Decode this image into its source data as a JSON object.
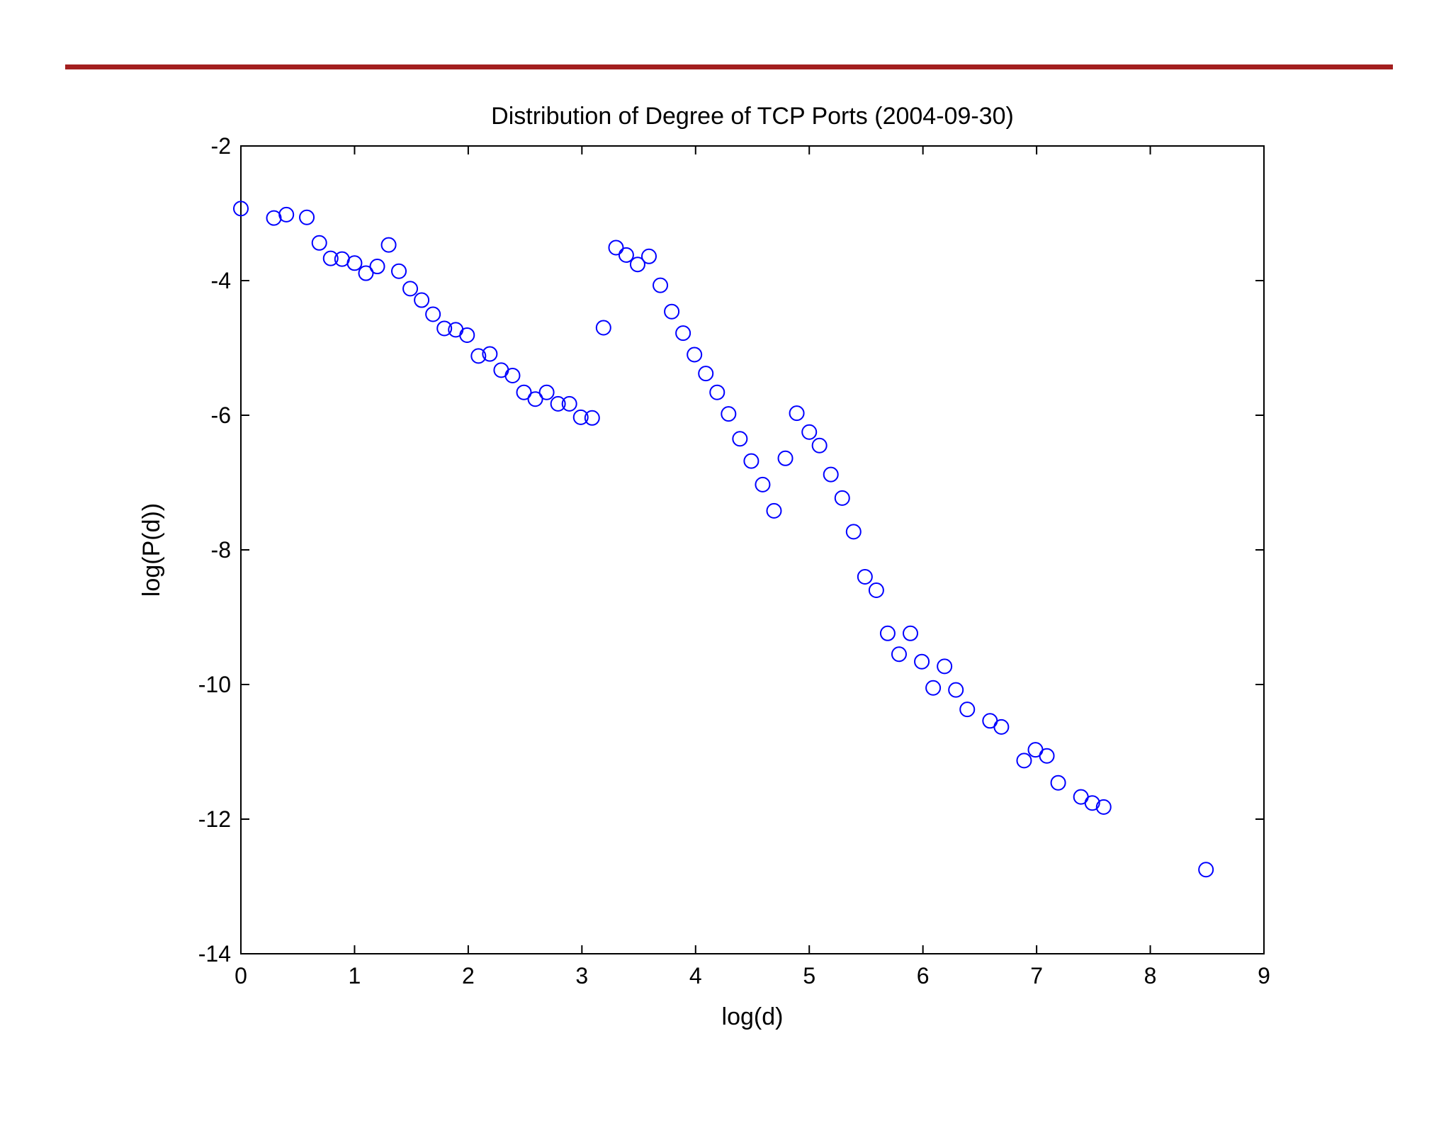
{
  "accent_color": "#a31f1f",
  "chart_data": {
    "type": "scatter",
    "title": "Distribution of Degree of TCP Ports (2004-09-30)",
    "xlabel": "log(d)",
    "ylabel": "log(P(d))",
    "xlim": [
      0,
      9
    ],
    "ylim": [
      -14,
      -2
    ],
    "xticks": [
      0,
      1,
      2,
      3,
      4,
      5,
      6,
      7,
      8,
      9
    ],
    "yticks": [
      -2,
      -4,
      -6,
      -8,
      -10,
      -12,
      -14
    ],
    "grid": false,
    "marker": "open-circle",
    "marker_color": "#0000ff",
    "series": [
      {
        "points": [
          [
            0.0,
            -2.93
          ],
          [
            0.29,
            -3.07
          ],
          [
            0.4,
            -3.02
          ],
          [
            0.58,
            -3.06
          ],
          [
            0.69,
            -3.44
          ],
          [
            0.79,
            -3.67
          ],
          [
            0.89,
            -3.68
          ],
          [
            1.0,
            -3.74
          ],
          [
            1.1,
            -3.89
          ],
          [
            1.2,
            -3.79
          ],
          [
            1.3,
            -3.47
          ],
          [
            1.39,
            -3.86
          ],
          [
            1.49,
            -4.12
          ],
          [
            1.59,
            -4.29
          ],
          [
            1.69,
            -4.5
          ],
          [
            1.79,
            -4.71
          ],
          [
            1.89,
            -4.73
          ],
          [
            1.99,
            -4.81
          ],
          [
            2.09,
            -5.12
          ],
          [
            2.19,
            -5.09
          ],
          [
            2.29,
            -5.33
          ],
          [
            2.39,
            -5.41
          ],
          [
            2.49,
            -5.66
          ],
          [
            2.59,
            -5.76
          ],
          [
            2.69,
            -5.66
          ],
          [
            2.79,
            -5.83
          ],
          [
            2.89,
            -5.83
          ],
          [
            2.99,
            -6.03
          ],
          [
            3.09,
            -6.04
          ],
          [
            3.19,
            -4.7
          ],
          [
            3.3,
            -3.51
          ],
          [
            3.39,
            -3.62
          ],
          [
            3.49,
            -3.76
          ],
          [
            3.59,
            -3.64
          ],
          [
            3.69,
            -4.07
          ],
          [
            3.79,
            -4.46
          ],
          [
            3.89,
            -4.78
          ],
          [
            3.99,
            -5.1
          ],
          [
            4.09,
            -5.38
          ],
          [
            4.19,
            -5.66
          ],
          [
            4.29,
            -5.98
          ],
          [
            4.39,
            -6.35
          ],
          [
            4.49,
            -6.68
          ],
          [
            4.59,
            -7.03
          ],
          [
            4.69,
            -7.42
          ],
          [
            4.79,
            -6.64
          ],
          [
            4.89,
            -5.97
          ],
          [
            5.0,
            -6.25
          ],
          [
            5.09,
            -6.45
          ],
          [
            5.19,
            -6.88
          ],
          [
            5.29,
            -7.23
          ],
          [
            5.39,
            -7.73
          ],
          [
            5.49,
            -8.4
          ],
          [
            5.59,
            -8.6
          ],
          [
            5.69,
            -9.24
          ],
          [
            5.79,
            -9.55
          ],
          [
            5.89,
            -9.24
          ],
          [
            5.99,
            -9.66
          ],
          [
            6.09,
            -10.05
          ],
          [
            6.19,
            -9.73
          ],
          [
            6.29,
            -10.08
          ],
          [
            6.39,
            -10.37
          ],
          [
            6.59,
            -10.54
          ],
          [
            6.69,
            -10.63
          ],
          [
            6.89,
            -11.13
          ],
          [
            6.99,
            -10.97
          ],
          [
            7.09,
            -11.06
          ],
          [
            7.19,
            -11.46
          ],
          [
            7.39,
            -11.67
          ],
          [
            7.49,
            -11.76
          ],
          [
            7.59,
            -11.82
          ],
          [
            8.49,
            -12.75
          ]
        ]
      }
    ]
  }
}
